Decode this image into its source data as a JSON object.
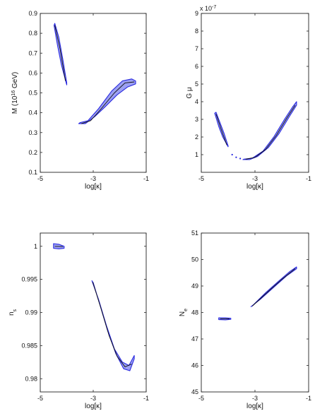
{
  "chart_data": [
    {
      "type": "area",
      "panel": "top-left",
      "title": "",
      "xlabel": "log[κ]",
      "ylabel_parts": [
        "M (10",
        "16",
        " GeV)"
      ],
      "xlim": [
        -5,
        -1
      ],
      "ylim": [
        0.1,
        0.9
      ],
      "xticks": [
        "-5",
        "-3",
        "-1"
      ],
      "yticks": [
        "0.1",
        "0.2",
        "0.3",
        "0.4",
        "0.5",
        "0.6",
        "0.7",
        "0.8",
        "0.9"
      ],
      "regions": [
        {
          "name": "",
          "upper": [
            [
              -4.45,
              0.85
            ],
            [
              -4.3,
              0.78
            ],
            [
              -4.15,
              0.67
            ],
            [
              -4.0,
              0.55
            ]
          ],
          "lower": [
            [
              -4.0,
              0.54
            ],
            [
              -4.2,
              0.64
            ],
            [
              -4.35,
              0.74
            ],
            [
              -4.48,
              0.84
            ]
          ]
        },
        {
          "name": "",
          "upper": [
            [
              -3.5,
              0.35
            ],
            [
              -3.2,
              0.36
            ],
            [
              -2.8,
              0.42
            ],
            [
              -2.3,
              0.51
            ],
            [
              -1.9,
              0.56
            ],
            [
              -1.55,
              0.57
            ],
            [
              -1.4,
              0.56
            ]
          ],
          "lower": [
            [
              -1.4,
              0.545
            ],
            [
              -1.7,
              0.53
            ],
            [
              -2.1,
              0.49
            ],
            [
              -2.55,
              0.43
            ],
            [
              -2.95,
              0.38
            ],
            [
              -3.3,
              0.345
            ],
            [
              -3.55,
              0.345
            ]
          ]
        }
      ],
      "ridges": [
        [
          [
            -4.45,
            0.84
          ],
          [
            -4.25,
            0.72
          ],
          [
            -4.05,
            0.56
          ]
        ],
        [
          [
            -3.45,
            0.345
          ],
          [
            -3.1,
            0.36
          ],
          [
            -2.7,
            0.42
          ],
          [
            -2.2,
            0.5
          ],
          [
            -1.8,
            0.55
          ],
          [
            -1.45,
            0.555
          ]
        ]
      ]
    },
    {
      "type": "area",
      "panel": "top-right",
      "title": "",
      "xlabel": "log[κ]",
      "ylabel": "G μ",
      "yscale_label": "x 10",
      "yscale_exp": "-7",
      "xlim": [
        -5,
        -1
      ],
      "ylim": [
        0,
        9
      ],
      "xticks": [
        "-5",
        "-3",
        "-1"
      ],
      "yticks": [
        "1",
        "2",
        "3",
        "4",
        "5",
        "6",
        "7",
        "8",
        "9"
      ],
      "regions": [
        {
          "name": "",
          "upper": [
            [
              -4.45,
              3.4
            ],
            [
              -4.3,
              2.8
            ],
            [
              -4.15,
              2.2
            ],
            [
              -4.0,
              1.5
            ]
          ],
          "lower": [
            [
              -4.0,
              1.45
            ],
            [
              -4.2,
              2.0
            ],
            [
              -4.35,
              2.6
            ],
            [
              -4.5,
              3.35
            ]
          ]
        },
        {
          "name": "",
          "upper": [
            [
              -3.4,
              0.75
            ],
            [
              -3.1,
              0.8
            ],
            [
              -2.7,
              1.2
            ],
            [
              -2.3,
              2.0
            ],
            [
              -1.9,
              3.0
            ],
            [
              -1.6,
              3.7
            ],
            [
              -1.45,
              4.0
            ]
          ],
          "lower": [
            [
              -1.45,
              3.8
            ],
            [
              -1.7,
              3.2
            ],
            [
              -2.1,
              2.2
            ],
            [
              -2.5,
              1.4
            ],
            [
              -2.9,
              0.9
            ],
            [
              -3.2,
              0.72
            ],
            [
              -3.45,
              0.72
            ]
          ]
        }
      ],
      "ridges": [
        [
          [
            -4.45,
            3.3
          ],
          [
            -4.25,
            2.4
          ],
          [
            -4.05,
            1.55
          ]
        ],
        [
          [
            -3.35,
            0.74
          ],
          [
            -3.0,
            0.85
          ],
          [
            -2.6,
            1.3
          ],
          [
            -2.2,
            2.1
          ],
          [
            -1.8,
            3.1
          ],
          [
            -1.5,
            3.8
          ]
        ]
      ],
      "dots": [
        [
          -3.85,
          1.0
        ],
        [
          -3.7,
          0.85
        ],
        [
          -3.55,
          0.78
        ]
      ]
    },
    {
      "type": "area",
      "panel": "bottom-left",
      "title": "",
      "xlabel": "log[κ]",
      "ylabel": "n",
      "ylabel_sub": "s",
      "xlim": [
        -5,
        -1
      ],
      "ylim": [
        0.978,
        1.002
      ],
      "xticks": [
        "-5",
        "-3",
        "-1"
      ],
      "yticks": [
        "0.98",
        "0.985",
        "0.99",
        "0.995",
        "1"
      ],
      "regions": [
        {
          "name": "",
          "upper": [
            [
              -4.5,
              1.0004
            ],
            [
              -4.3,
              1.0003
            ],
            [
              -4.1,
              1.0
            ]
          ],
          "lower": [
            [
              -4.1,
              0.9997
            ],
            [
              -4.3,
              0.9996
            ],
            [
              -4.5,
              0.9997
            ]
          ]
        },
        {
          "name": "",
          "upper": [
            [
              -3.05,
              0.9948
            ],
            [
              -2.8,
              0.992
            ],
            [
              -2.5,
              0.988
            ],
            [
              -2.2,
              0.9845
            ],
            [
              -1.9,
              0.9825
            ],
            [
              -1.65,
              0.982
            ],
            [
              -1.45,
              0.9835
            ]
          ],
          "lower": [
            [
              -1.45,
              0.983
            ],
            [
              -1.62,
              0.9812
            ],
            [
              -1.85,
              0.9815
            ],
            [
              -2.15,
              0.9838
            ],
            [
              -2.45,
              0.9872
            ],
            [
              -2.75,
              0.9912
            ],
            [
              -3.0,
              0.9945
            ]
          ]
        }
      ],
      "ridges": [
        [
          [
            -4.45,
            1.0
          ],
          [
            -4.15,
            0.99995
          ]
        ],
        [
          [
            -3.02,
            0.9946
          ],
          [
            -2.7,
            0.9905
          ],
          [
            -2.4,
            0.9865
          ],
          [
            -2.1,
            0.9834
          ],
          [
            -1.8,
            0.9818
          ],
          [
            -1.55,
            0.9822
          ]
        ]
      ]
    },
    {
      "type": "area",
      "panel": "bottom-right",
      "title": "",
      "xlabel": "log[κ]",
      "ylabel": "N",
      "ylabel_sub": "e",
      "xlim": [
        -5,
        -1
      ],
      "ylim": [
        45,
        51
      ],
      "xticks": [
        "-5",
        "-3",
        "-1"
      ],
      "yticks": [
        "45",
        "46",
        "47",
        "48",
        "49",
        "50",
        "51"
      ],
      "regions": [
        {
          "name": "",
          "upper": [
            [
              -4.35,
              47.8
            ],
            [
              -4.1,
              47.8
            ],
            [
              -3.9,
              47.78
            ]
          ],
          "lower": [
            [
              -3.9,
              47.74
            ],
            [
              -4.1,
              47.72
            ],
            [
              -4.35,
              47.73
            ]
          ]
        },
        {
          "name": "",
          "upper": [
            [
              -3.1,
              48.25
            ],
            [
              -2.6,
              48.75
            ],
            [
              -2.1,
              49.2
            ],
            [
              -1.7,
              49.55
            ],
            [
              -1.45,
              49.72
            ]
          ],
          "lower": [
            [
              -1.45,
              49.65
            ],
            [
              -1.8,
              49.4
            ],
            [
              -2.3,
              48.95
            ],
            [
              -2.8,
              48.5
            ],
            [
              -3.15,
              48.22
            ]
          ]
        }
      ],
      "ridges": [
        [
          [
            -4.3,
            47.76
          ],
          [
            -3.95,
            47.76
          ]
        ],
        [
          [
            -3.1,
            48.24
          ],
          [
            -2.5,
            48.8
          ],
          [
            -2.0,
            49.25
          ],
          [
            -1.5,
            49.66
          ]
        ]
      ]
    }
  ]
}
